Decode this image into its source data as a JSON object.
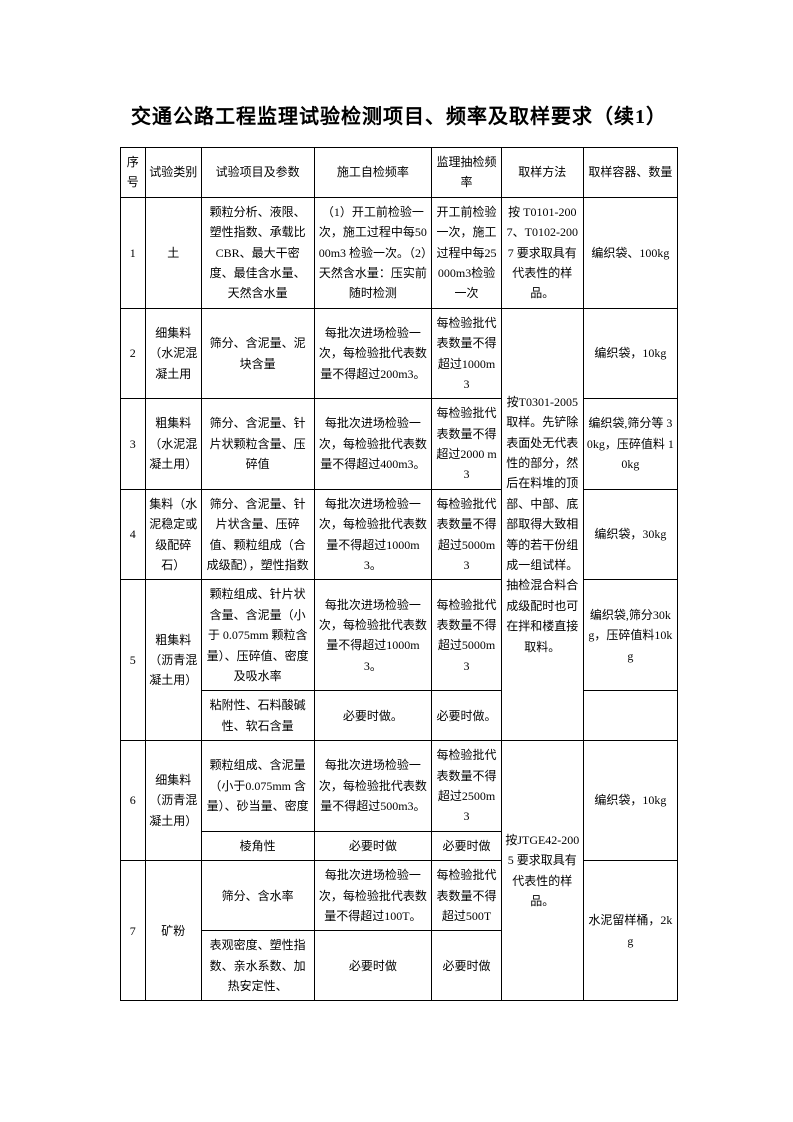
{
  "title": "交通公路工程监理试验检测项目、频率及取样要求（续1）",
  "headers": {
    "h1": "序号",
    "h2": "试验类别",
    "h3": "试验项目及参数",
    "h4": "施工自检频率",
    "h5": "监理抽检频率",
    "h6": "取样方法",
    "h7": "取样容器、数量"
  },
  "rows": {
    "r1": {
      "no": "1",
      "cat": "土",
      "param": "颗粒分析、液限、塑性指数、承载比 CBR、最大干密度、最佳含水量、天然含水量",
      "self": "（1）开工前检验一次，施工过程中每5000m3 检验一次。（2）天然含水量：压实前随时检测",
      "sup": "开工前检验一次，施工过程中每25000m3检验一次",
      "method": "按 T0101-2007、T0102-2007 要求取具有代表性的样品。",
      "container": "编织袋、100kg"
    },
    "r2": {
      "no": "2",
      "cat": "细集料（水泥混凝土用",
      "param": "筛分、含泥量、泥块含量",
      "self": "每批次进场检验一次，每检验批代表数量不得超过200m3。",
      "sup": "每检验批代表数量不得超过1000m3",
      "container": "编织袋，10kg"
    },
    "r3": {
      "no": "3",
      "cat": "粗集料（水泥混凝土用）",
      "param": "筛分、含泥量、针片状颗粒含量、压碎值",
      "self": "每批次进场检验一次，每检验批代表数量不得超过400m3。",
      "sup": "每检验批代表数量不得超过2000 m3",
      "container": "编织袋,筛分等 30kg，压碎值料 10kg"
    },
    "r4": {
      "no": "4",
      "cat": "集料（水泥稳定或级配碎石）",
      "param": "筛分、含泥量、针片状含量、压碎值、颗粒组成（合成级配），塑性指数",
      "self": "每批次进场检验一次，每检验批代表数量不得超过1000m3。",
      "sup": "每检验批代表数量不得超过5000m3",
      "container": "编织袋，30kg"
    },
    "merged_method_2_5": "按T0301-2005 取样。先铲除表面处无代表性的部分，然后在料堆的顶部、中部、底部取得大致相等的若干份组成一组试样。抽检混合料合成级配时也可在拌和楼直接取料。",
    "r5a": {
      "no": "5",
      "cat": "粗集料（沥青混凝土用）",
      "param": "颗粒组成、针片状含量、含泥量（小于 0.075mm 颗粒含量）、压碎值、密度及吸水率",
      "self": "每批次进场检验一次，每检验批代表数量不得超过1000m3。",
      "sup": "每检验批代表数量不得超过5000m3",
      "container": "编织袋,筛分30kg，压碎值料10kg"
    },
    "r5b": {
      "param": "粘附性、石料酸碱性、软石含量",
      "self": "必要时做。",
      "sup": "必要时做。"
    },
    "r6a": {
      "no": "6",
      "cat": "细集料（沥青混凝土用）",
      "param": "颗粒组成、含泥量（小于0.075mm 含量）、砂当量、密度",
      "self": "每批次进场检验一次，每检验批代表数量不得超过500m3。",
      "sup": "每检验批代表数量不得超过2500m3",
      "container": "编织袋，10kg"
    },
    "r6b": {
      "param": "棱角性",
      "self": "必要时做",
      "sup": "必要时做"
    },
    "merged_method_6_7": "按JTGE42-2005 要求取具有代表性的样品。",
    "r7a": {
      "no": "7",
      "cat": "矿粉",
      "param": "筛分、含水率",
      "self": "每批次进场检验一次，每检验批代表数量不得超过100T。",
      "sup": "每检验批代表数量不得超过500T",
      "container": "水泥留样桶，2kg"
    },
    "r7b": {
      "param": "表观密度、塑性指数、亲水系数、加热安定性、",
      "self": "必要时做",
      "sup": "必要时做"
    }
  }
}
